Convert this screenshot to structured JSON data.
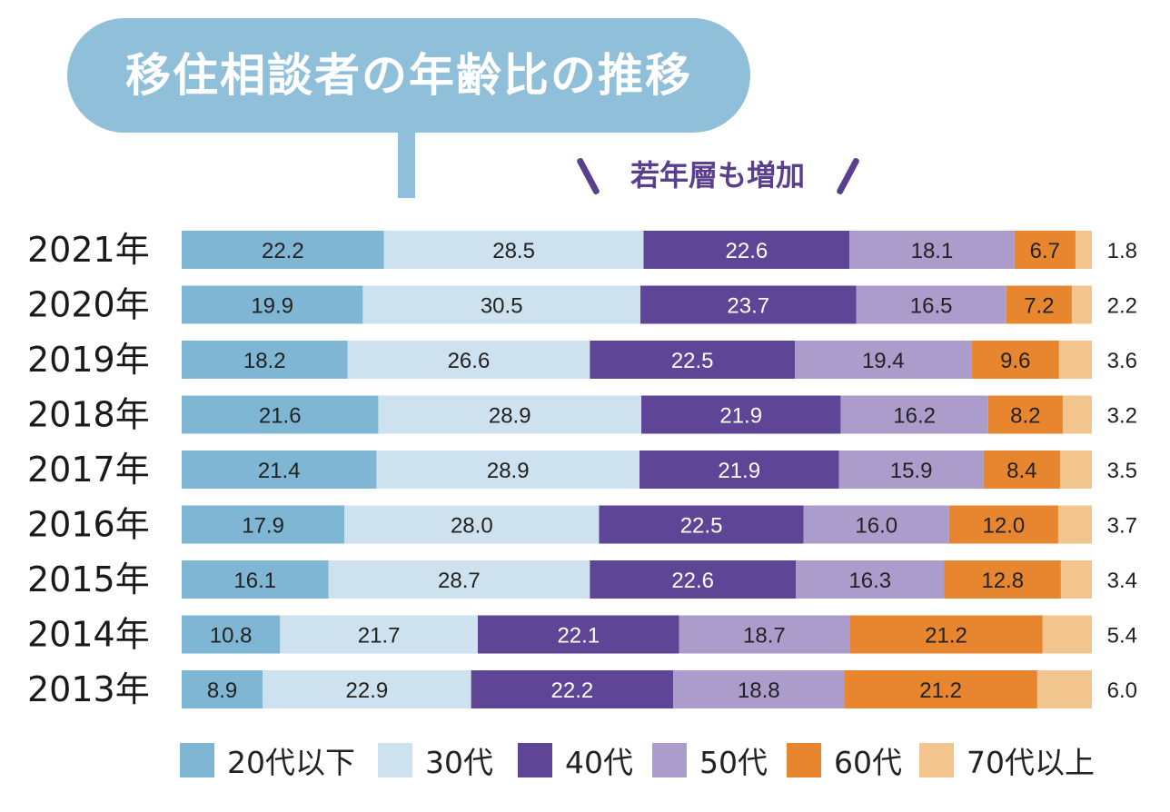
{
  "title": "移住相談者の年齢比の推移",
  "annotation": "若年層も増加",
  "chart_data": {
    "type": "bar",
    "orientation": "horizontal",
    "stacked": true,
    "unit": "%",
    "categories": [
      "2021年",
      "2020年",
      "2019年",
      "2018年",
      "2017年",
      "2016年",
      "2015年",
      "2014年",
      "2013年"
    ],
    "series": [
      {
        "name": "20代以下",
        "color": "#7fb6d4",
        "text_color": "#222222",
        "values": [
          22.2,
          19.9,
          18.2,
          21.6,
          21.4,
          17.9,
          16.1,
          10.8,
          8.9
        ]
      },
      {
        "name": "30代",
        "color": "#cde1ee",
        "text_color": "#222222",
        "values": [
          28.5,
          30.5,
          26.6,
          28.9,
          28.9,
          28.0,
          28.7,
          21.7,
          22.9
        ]
      },
      {
        "name": "40代",
        "color": "#5e4596",
        "text_color": "#ffffff",
        "values": [
          22.6,
          23.7,
          22.5,
          21.9,
          21.9,
          22.5,
          22.6,
          22.1,
          22.2
        ]
      },
      {
        "name": "50代",
        "color": "#ab9ccc",
        "text_color": "#222222",
        "values": [
          18.1,
          16.5,
          19.4,
          16.2,
          15.9,
          16.0,
          16.3,
          18.7,
          18.8
        ]
      },
      {
        "name": "60代",
        "color": "#e7862f",
        "text_color": "#222222",
        "values": [
          6.7,
          7.2,
          9.6,
          8.2,
          8.4,
          12.0,
          12.8,
          21.2,
          21.2
        ]
      },
      {
        "name": "70代以上",
        "color": "#f2c48e",
        "text_color": "#222222",
        "values": [
          1.8,
          2.2,
          3.6,
          3.2,
          3.5,
          3.7,
          3.4,
          5.4,
          6.0
        ]
      }
    ],
    "labels_inside_for_series": [
      0,
      1,
      2,
      3,
      4
    ],
    "labels_outside_for_series": [
      5
    ],
    "legend_position": "bottom"
  }
}
